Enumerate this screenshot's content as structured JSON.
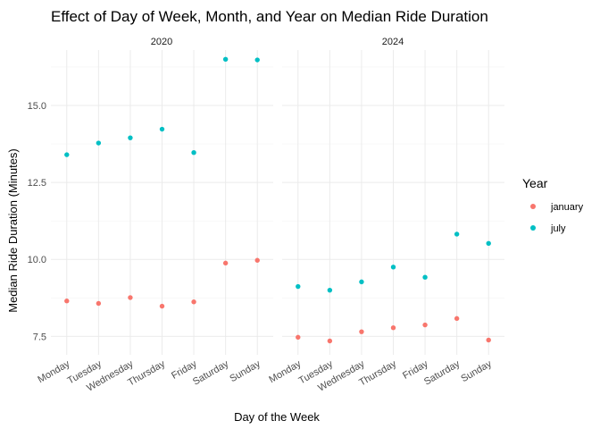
{
  "chart_data": {
    "type": "scatter",
    "title": "Effect of Day of Week, Month, and Year on Median Ride Duration",
    "xlabel": "Day of the Week",
    "ylabel": "Median Ride Duration (Minutes)",
    "categories": [
      "Monday",
      "Tuesday",
      "Wednesday",
      "Thursday",
      "Friday",
      "Saturday",
      "Sunday"
    ],
    "yticks": [
      7.5,
      10.0,
      12.5,
      15.0
    ],
    "ytick_labels": [
      "7.5",
      "10.0",
      "12.5",
      "15.0"
    ],
    "ylim": [
      6.9,
      16.8
    ],
    "grid": true,
    "legend": {
      "title": "Year",
      "position": "right",
      "entries": [
        {
          "label": "january",
          "color": "#F8766D"
        },
        {
          "label": "july",
          "color": "#00BFC4"
        }
      ]
    },
    "facets": [
      {
        "label": "2020",
        "series": [
          {
            "name": "january",
            "color": "#F8766D",
            "values": [
              8.65,
              8.57,
              8.76,
              8.48,
              8.62,
              9.88,
              9.97
            ]
          },
          {
            "name": "july",
            "color": "#00BFC4",
            "values": [
              13.4,
              13.78,
              13.95,
              14.23,
              13.47,
              16.5,
              16.48
            ]
          }
        ]
      },
      {
        "label": "2024",
        "series": [
          {
            "name": "january",
            "color": "#F8766D",
            "values": [
              7.47,
              7.35,
              7.65,
              7.78,
              7.87,
              8.08,
              7.38
            ]
          },
          {
            "name": "july",
            "color": "#00BFC4",
            "values": [
              9.12,
              9.0,
              9.27,
              9.75,
              9.42,
              10.82,
              10.52
            ]
          }
        ]
      }
    ]
  }
}
